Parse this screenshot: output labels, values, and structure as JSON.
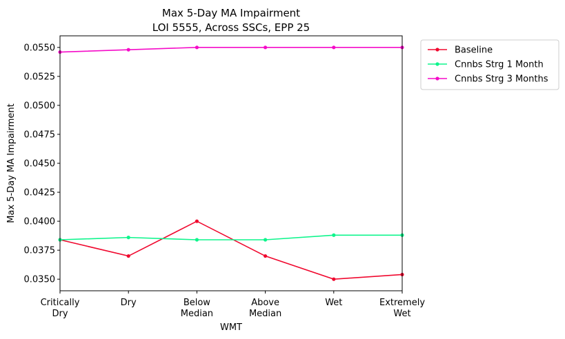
{
  "chart_data": {
    "type": "line",
    "title": "Max 5-Day MA Impairment",
    "subtitle": "LOI 5555, Across SSCs, EPP 25",
    "xlabel": "WMT",
    "ylabel": "Max 5-Day MA Impairment",
    "categories": [
      "Critically\nDry",
      "Dry",
      "Below\nMedian",
      "Above\nMedian",
      "Wet",
      "Extremely\nWet"
    ],
    "ylim": [
      0.034,
      0.056
    ],
    "yticks": [
      "0.0350",
      "0.0375",
      "0.0400",
      "0.0425",
      "0.0450",
      "0.0475",
      "0.0500",
      "0.0525",
      "0.0550"
    ],
    "ytick_values": [
      0.035,
      0.0375,
      0.04,
      0.0425,
      0.045,
      0.0475,
      0.05,
      0.0525,
      0.055
    ],
    "grid": false,
    "legend_position": "outside-top-right",
    "series": [
      {
        "name": "Baseline",
        "color": "#f0082e",
        "values": [
          0.0384,
          0.037,
          0.04,
          0.037,
          0.035,
          0.0354
        ]
      },
      {
        "name": "Cnnbs Strg 1 Month",
        "color": "#0df58c",
        "values": [
          0.0384,
          0.0386,
          0.0384,
          0.0384,
          0.0388,
          0.0388
        ]
      },
      {
        "name": "Cnnbs Strg 3 Months",
        "color": "#f50ac8",
        "values": [
          0.0546,
          0.0548,
          0.055,
          0.055,
          0.055,
          0.055
        ]
      }
    ]
  }
}
